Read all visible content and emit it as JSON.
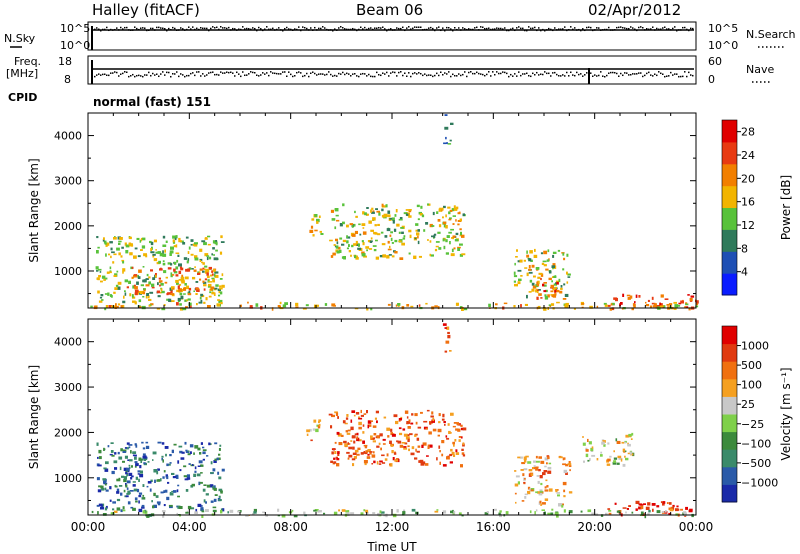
{
  "header": {
    "title": "Halley (fitACF)",
    "beam": "Beam 06",
    "date": "02/Apr/2012"
  },
  "top_panel": {
    "left_label": "N.Sky",
    "right_label": "N.Search",
    "left_ticks": [
      "10^5",
      "10^0"
    ],
    "right_ticks": [
      "10^5",
      "10^0"
    ]
  },
  "freq_panel": {
    "left_label_1": "Freq.",
    "left_label_2": "[MHz]",
    "right_label": "Nave",
    "left_ticks": [
      "18",
      "8"
    ],
    "right_ticks": [
      "60",
      "0"
    ]
  },
  "cpid": {
    "label": "CPID",
    "value": "normal (fast) 151"
  },
  "chart_data": [
    {
      "type": "heatmap",
      "name": "power",
      "ylabel": "Slant Range [km]",
      "xlabel": "Time UT",
      "x_ticks": [
        "00:00",
        "04:00",
        "08:00",
        "12:00",
        "16:00",
        "20:00",
        "00:00"
      ],
      "xlim_hours": [
        0,
        24
      ],
      "ylim_km": [
        180,
        4500
      ],
      "y_ticks": [
        1000,
        2000,
        3000,
        4000
      ],
      "colorbar": {
        "label": "Power [dB]",
        "ticks": [
          "4",
          "8",
          "12",
          "16",
          "20",
          "24",
          "28"
        ],
        "range": [
          0,
          30
        ],
        "colors": [
          "#0a1cff",
          "#1e4fb4",
          "#2f7a5b",
          "#58c23a",
          "#f2b400",
          "#f27f00",
          "#e83a12",
          "#e00000"
        ]
      },
      "regions": [
        {
          "t0": 0.3,
          "t1": 5.3,
          "r0": 300,
          "r1": 1800,
          "level": 0.45
        },
        {
          "t0": 1.5,
          "t1": 5.0,
          "r0": 500,
          "r1": 1100,
          "level": 0.7
        },
        {
          "t0": 8.6,
          "t1": 9.2,
          "r0": 1800,
          "r1": 2300,
          "level": 0.55
        },
        {
          "t0": 9.5,
          "t1": 14.8,
          "r0": 1300,
          "r1": 2500,
          "level": 0.5
        },
        {
          "t0": 14.0,
          "t1": 14.3,
          "r0": 3800,
          "r1": 4500,
          "level": 0.3
        },
        {
          "t0": 16.8,
          "t1": 19.0,
          "r0": 400,
          "r1": 1500,
          "level": 0.5
        },
        {
          "t0": 17.5,
          "t1": 18.6,
          "r0": 400,
          "r1": 900,
          "level": 0.75
        },
        {
          "t0": 20.5,
          "t1": 24.0,
          "r0": 200,
          "r1": 500,
          "level": 0.8
        },
        {
          "t0": 0.0,
          "t1": 24.0,
          "r0": 180,
          "r1": 320,
          "level": 0.6
        }
      ]
    },
    {
      "type": "heatmap",
      "name": "velocity",
      "ylabel": "Slant Range [km]",
      "xlabel": "Time UT",
      "x_ticks": [
        "00:00",
        "04:00",
        "08:00",
        "12:00",
        "16:00",
        "20:00",
        "00:00"
      ],
      "xlim_hours": [
        0,
        24
      ],
      "ylim_km": [
        180,
        4500
      ],
      "y_ticks": [
        1000,
        2000,
        3000,
        4000
      ],
      "colorbar": {
        "label": "Velocity [m s⁻¹]",
        "ticks": [
          "1000",
          "500",
          "100",
          "25",
          "−25",
          "−100",
          "−500",
          "−1000"
        ],
        "colors": [
          "#1a2aa8",
          "#2a5aa8",
          "#3a8a6a",
          "#3c8a3c",
          "#7fd04a",
          "#c8c8c8",
          "#f5a020",
          "#f07010",
          "#e03a10",
          "#e00000"
        ]
      },
      "regions": [
        {
          "t0": 0.3,
          "t1": 5.3,
          "r0": 300,
          "r1": 1800,
          "level": 0.2
        },
        {
          "t0": 8.6,
          "t1": 9.2,
          "r0": 1800,
          "r1": 2300,
          "level": 0.65
        },
        {
          "t0": 9.5,
          "t1": 14.8,
          "r0": 1300,
          "r1": 2500,
          "level": 0.78
        },
        {
          "t0": 14.0,
          "t1": 14.3,
          "r0": 3800,
          "r1": 4500,
          "level": 0.8
        },
        {
          "t0": 16.8,
          "t1": 19.0,
          "r0": 400,
          "r1": 1500,
          "level": 0.65
        },
        {
          "t0": 19.5,
          "t1": 21.5,
          "r0": 1300,
          "r1": 2000,
          "level": 0.55
        },
        {
          "t0": 20.5,
          "t1": 24.0,
          "r0": 200,
          "r1": 500,
          "level": 0.9
        },
        {
          "t0": 0.0,
          "t1": 24.0,
          "r0": 180,
          "r1": 320,
          "level": 0.45
        }
      ]
    }
  ]
}
